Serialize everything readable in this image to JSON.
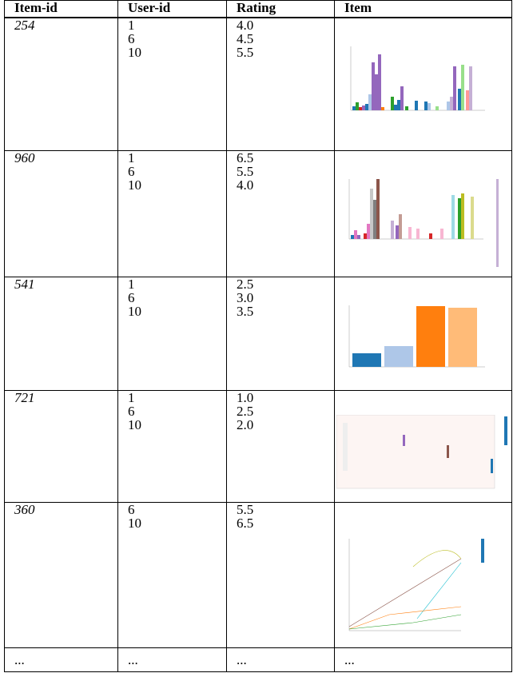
{
  "table": {
    "header": [
      "Item-id",
      "User-id",
      "Rating",
      "Item"
    ],
    "rows": [
      {
        "item_id": "254",
        "users": [
          "1",
          "6",
          "10"
        ],
        "ratings": [
          "4.0",
          "4.5",
          "5.5"
        ]
      },
      {
        "item_id": "960",
        "users": [
          "1",
          "6",
          "10"
        ],
        "ratings": [
          "6.5",
          "5.5",
          "4.0"
        ]
      },
      {
        "item_id": "541",
        "users": [
          "1",
          "6",
          "10"
        ],
        "ratings": [
          "2.5",
          "3.0",
          "3.5"
        ]
      },
      {
        "item_id": "721",
        "users": [
          "1",
          "6",
          "10"
        ],
        "ratings": [
          "1.0",
          "2.5",
          "2.0"
        ]
      },
      {
        "item_id": "360",
        "users": [
          "6",
          "10"
        ],
        "ratings": [
          "5.5",
          "6.5"
        ]
      }
    ],
    "ellipsis": [
      "...",
      "...",
      "...",
      "..."
    ]
  }
}
